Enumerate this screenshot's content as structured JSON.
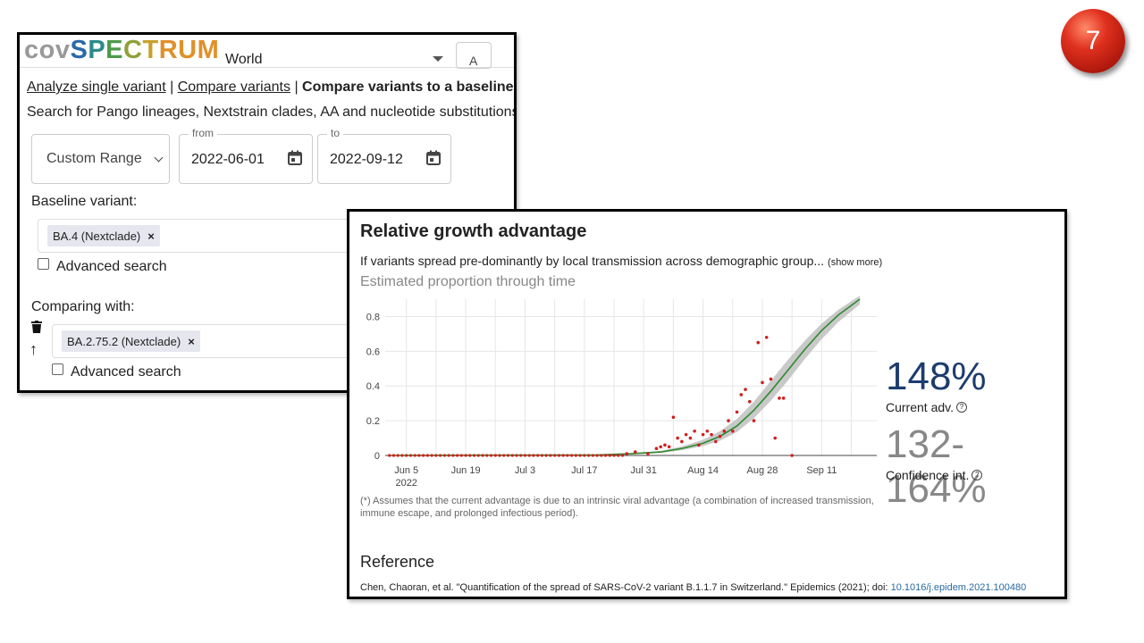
{
  "badge": {
    "number": "7",
    "color": "#d8261a"
  },
  "header": {
    "logo_cov": "cov",
    "logo_spectrum": [
      "S",
      "P",
      "E",
      "C",
      "T",
      "RUM"
    ],
    "region": "World",
    "second_field": "A"
  },
  "nav": {
    "link1": "Analyze single variant",
    "sep": "|",
    "link2": "Compare variants",
    "current": "Compare variants to a baseline"
  },
  "search_hint": "Search for Pango lineages, Nextstrain clades, AA and nucleotide substitutions",
  "date_filter": {
    "range_label": "Custom Range",
    "from_label": "from",
    "from_value": "2022-06-01",
    "to_label": "to",
    "to_value": "2022-09-12"
  },
  "baseline": {
    "label": "Baseline variant:",
    "chip": "BA.4 (Nextclade)",
    "chip_remove": "×",
    "advanced": "Advanced search"
  },
  "comparing": {
    "label": "Comparing with:",
    "chip": "BA.2.75.2 (Nextclade)",
    "chip_remove": "×",
    "advanced": "Advanced search"
  },
  "growth": {
    "title": "Relative growth advantage",
    "description": "If variants spread pre-dominantly by local transmission across demographic group...",
    "show_more": "(show more)",
    "subtitle": "Estimated proportion through time",
    "current_adv": "148%",
    "current_adv_label": "Current adv.",
    "confidence": "132-164%",
    "confidence_label": "Confidence int.",
    "help_mark": "?",
    "footnote": "(*) Assumes that the current advantage is due to an intrinsic viral advantage (a combination of increased transmission, immune escape, and prolonged infectious period).",
    "reference_title": "Reference",
    "reference_text": "Chen, Chaoran, et al. \"Quantification of the spread of SARS-CoV-2 variant B.1.1.7 in Switzerland.\" Epidemics (2021); doi:",
    "reference_doi": "10.1016/j.epidem.2021.100480"
  },
  "chart_data": {
    "type": "line",
    "ylim": [
      0,
      0.9
    ],
    "yticks": [
      0,
      0.2,
      0.4,
      0.6,
      0.8
    ],
    "xticks": [
      "Jun 5",
      "Jun 19",
      "Jul 3",
      "Jul 17",
      "Jul 31",
      "Aug 14",
      "Aug 28",
      "Sep 11"
    ],
    "xtick_year": "2022",
    "x_start": "2022-06-01",
    "x_end": "2022-09-12",
    "grid": true,
    "fit_color": "#2e8b2e",
    "ci_color": "#bbbbbb",
    "point_color": "#d11f1f",
    "fit_line": {
      "x": [
        "2022-06-01",
        "2022-07-20",
        "2022-07-28",
        "2022-08-04",
        "2022-08-09",
        "2022-08-14",
        "2022-08-18",
        "2022-08-22",
        "2022-08-26",
        "2022-08-30",
        "2022-09-03",
        "2022-09-07",
        "2022-09-11",
        "2022-09-15",
        "2022-09-20"
      ],
      "y": [
        0.0,
        0.003,
        0.01,
        0.02,
        0.04,
        0.07,
        0.11,
        0.17,
        0.26,
        0.37,
        0.49,
        0.61,
        0.72,
        0.81,
        0.9
      ]
    },
    "ci_upper": [
      0.0,
      0.005,
      0.014,
      0.026,
      0.052,
      0.09,
      0.14,
      0.21,
      0.31,
      0.43,
      0.55,
      0.66,
      0.76,
      0.84,
      0.92
    ],
    "ci_lower": [
      0.0,
      0.001,
      0.006,
      0.014,
      0.03,
      0.054,
      0.085,
      0.135,
      0.215,
      0.315,
      0.43,
      0.555,
      0.67,
      0.77,
      0.87
    ],
    "points": {
      "x": [
        "2022-07-27",
        "2022-07-29",
        "2022-08-01",
        "2022-08-03",
        "2022-08-04",
        "2022-08-05",
        "2022-08-06",
        "2022-08-07",
        "2022-08-08",
        "2022-08-09",
        "2022-08-10",
        "2022-08-11",
        "2022-08-12",
        "2022-08-13",
        "2022-08-14",
        "2022-08-15",
        "2022-08-16",
        "2022-08-17",
        "2022-08-18",
        "2022-08-19",
        "2022-08-20",
        "2022-08-21",
        "2022-08-22",
        "2022-08-23",
        "2022-08-24",
        "2022-08-25",
        "2022-08-26",
        "2022-08-27",
        "2022-08-28",
        "2022-08-29",
        "2022-08-30",
        "2022-08-31",
        "2022-09-01",
        "2022-09-02"
      ],
      "y": [
        0.01,
        0.02,
        0.01,
        0.04,
        0.05,
        0.06,
        0.05,
        0.22,
        0.1,
        0.08,
        0.12,
        0.1,
        0.14,
        0.06,
        0.12,
        0.14,
        0.12,
        0.08,
        0.11,
        0.14,
        0.2,
        0.14,
        0.25,
        0.35,
        0.38,
        0.31,
        0.2,
        0.65,
        0.42,
        0.68,
        0.44,
        0.1,
        0.33,
        0.33
      ]
    },
    "tail_point": {
      "x": "2022-09-04",
      "y": 0.0
    }
  }
}
